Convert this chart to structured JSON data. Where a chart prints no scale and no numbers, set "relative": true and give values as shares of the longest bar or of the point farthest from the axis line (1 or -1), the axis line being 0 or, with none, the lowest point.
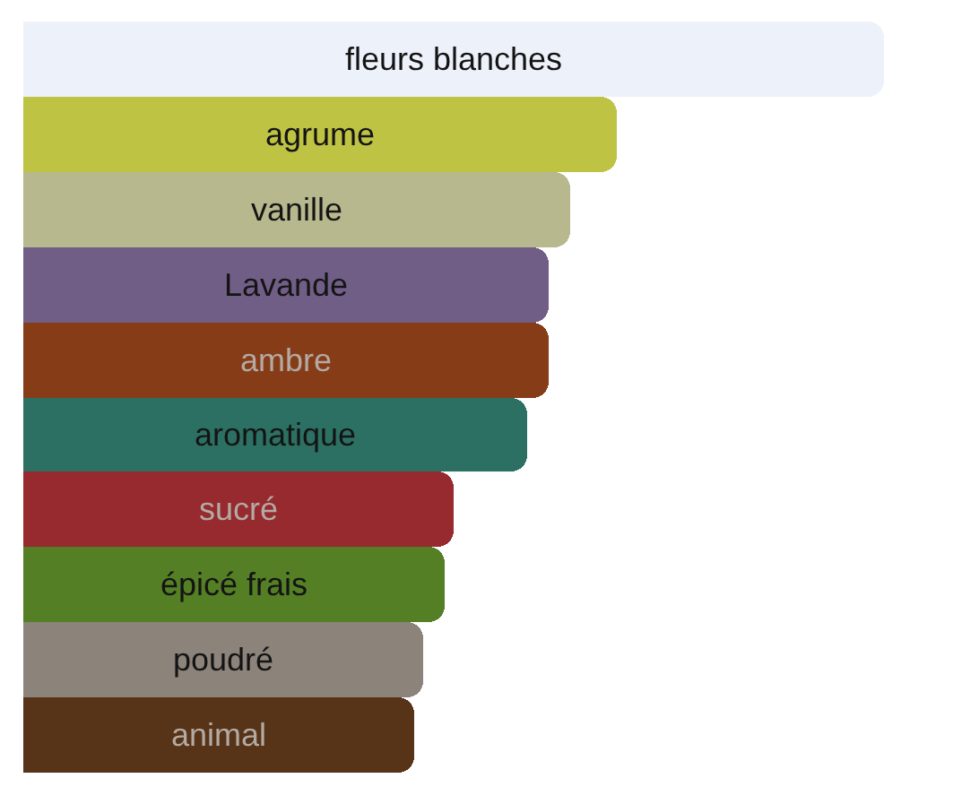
{
  "chart_data": {
    "type": "bar",
    "orientation": "horizontal",
    "relative": true,
    "categories": [
      "fleurs blanches",
      "agrume",
      "vanille",
      "Lavande",
      "ambre",
      "aromatique",
      "sucré",
      "épicé frais",
      "poudré",
      "animal"
    ],
    "values": [
      1,
      0.69,
      0.635,
      0.61,
      0.61,
      0.585,
      0.5,
      0.49,
      0.465,
      0.455
    ],
    "colors": [
      "#edf1fa",
      "#bfc344",
      "#b8b88e",
      "#715e87",
      "#873c18",
      "#2c7063",
      "#962a2f",
      "#547f25",
      "#8c837a",
      "#573318"
    ]
  }
}
